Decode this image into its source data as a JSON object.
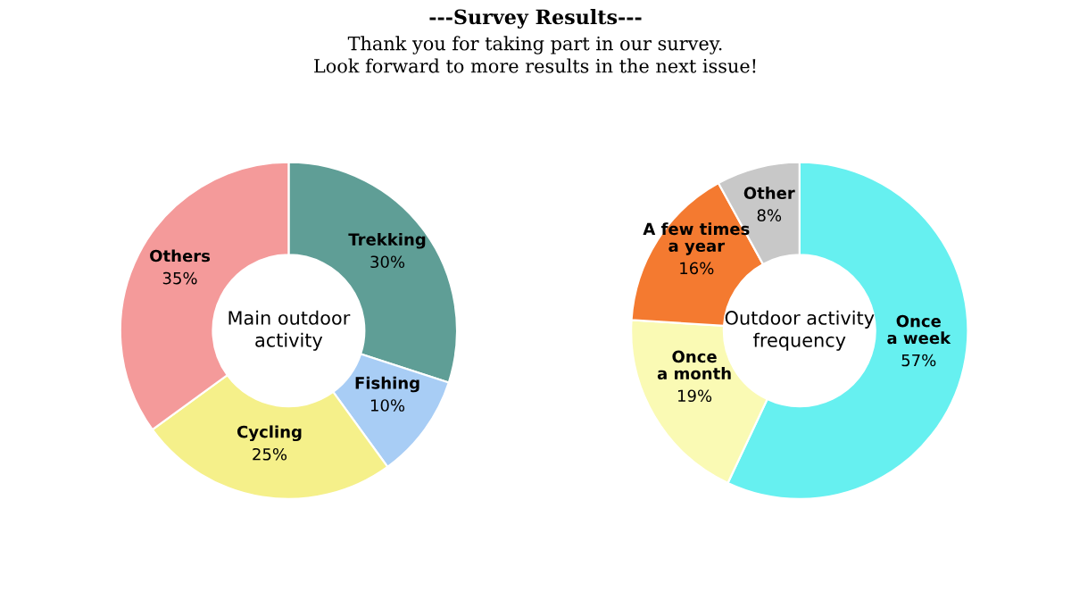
{
  "chart_data": [
    {
      "type": "donut",
      "title": "Main outdoor\nactivity",
      "annotations": [
        "---Survey Results---",
        "Thank you for taking part in our survey.\nLook forward to more results in the next issue!"
      ],
      "categories": [
        "Trekking",
        "Fishing",
        "Cycling",
        "Others"
      ],
      "values": [
        30,
        10,
        25,
        35
      ],
      "value_labels": [
        "30%",
        "10%",
        "25%",
        "35%"
      ],
      "colors": [
        "#5f9e96",
        "#a8cdf5",
        "#f5f08a",
        "#f49a9a"
      ],
      "legend": false
    },
    {
      "type": "donut",
      "title": "Outdoor activity\nfrequency",
      "categories": [
        "Once\na week",
        "Once\na month",
        "A few times\na year",
        "Other"
      ],
      "values": [
        57,
        19,
        16,
        8
      ],
      "value_labels": [
        "57%",
        "19%",
        "16%",
        "8%"
      ],
      "colors": [
        "#66f0f0",
        "#fafab4",
        "#f47a30",
        "#c8c8c8"
      ],
      "legend": false
    }
  ]
}
